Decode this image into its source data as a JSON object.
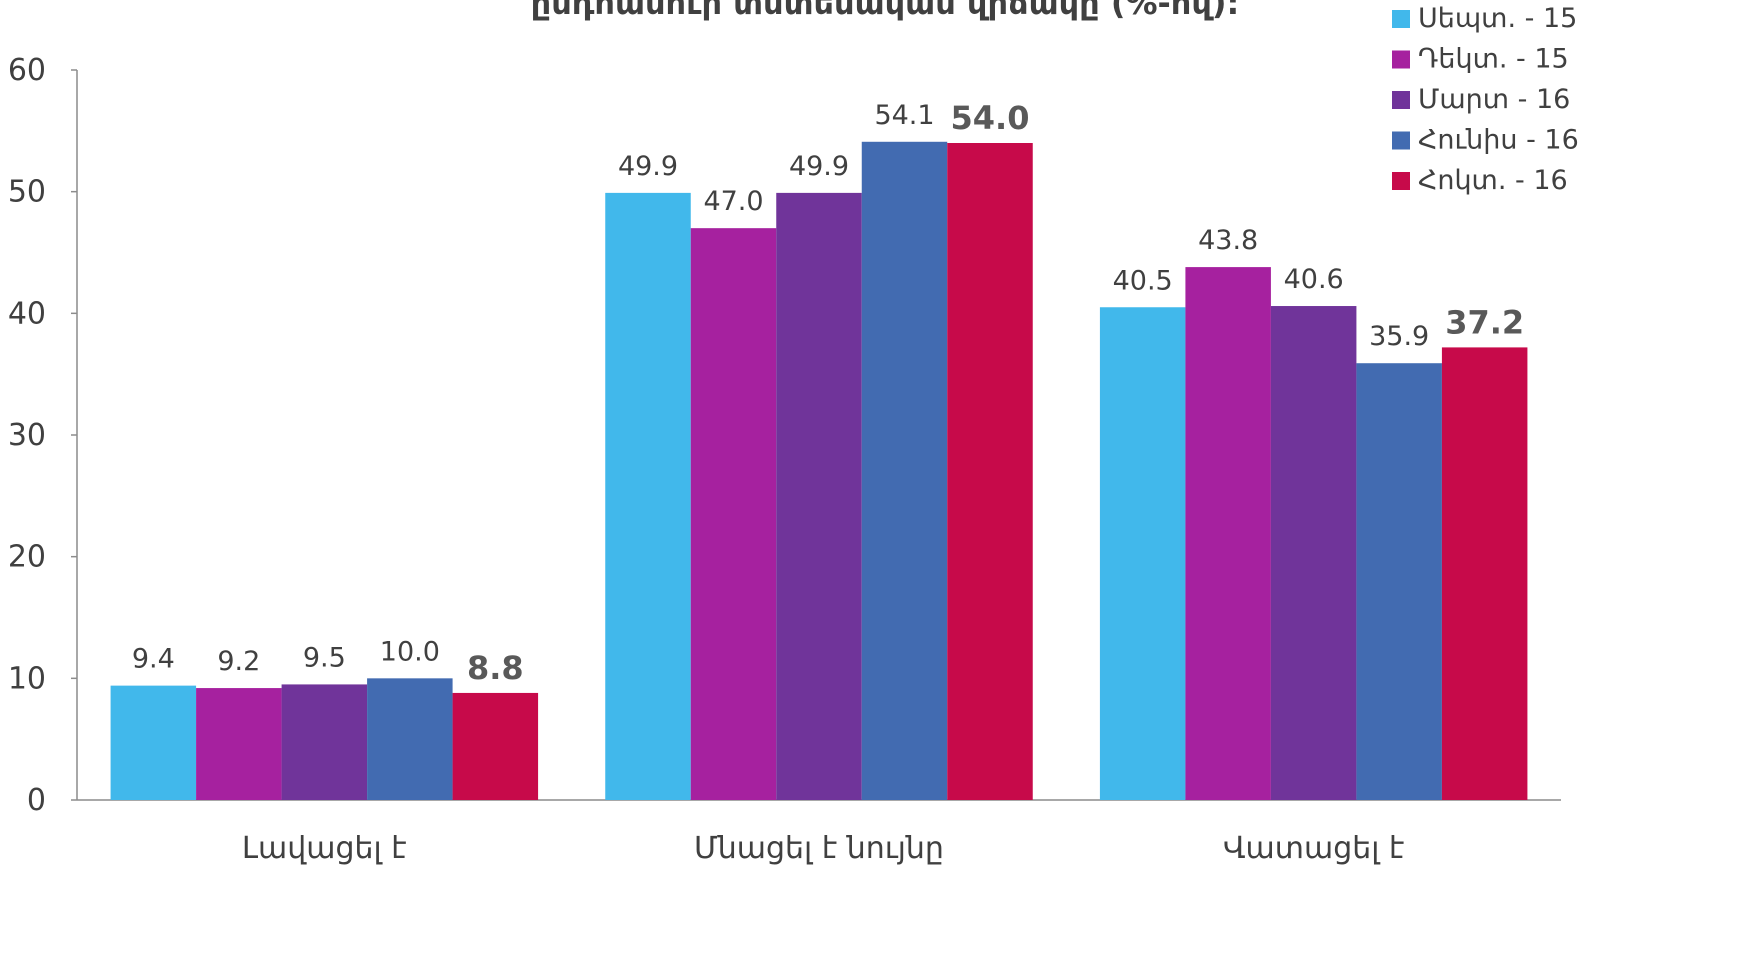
{
  "chart_data": {
    "type": "bar",
    "title": "ընդհանուր տնտեսական վիճակը (%-ով):",
    "categories": [
      "Լավացել է",
      "Մնացել է նույնը",
      "Վատացել է"
    ],
    "series": [
      {
        "name": "Սեպտ. - 15",
        "color": "#41B8EB",
        "values": [
          9.4,
          49.9,
          40.5
        ]
      },
      {
        "name": "Դեկտ. - 15",
        "color": "#A6219F",
        "values": [
          9.2,
          47.0,
          43.8
        ]
      },
      {
        "name": "Մարտ - 16",
        "color": "#70349A",
        "values": [
          9.5,
          49.9,
          40.6
        ]
      },
      {
        "name": "Հունիս - 16",
        "color": "#426BB1",
        "values": [
          10.0,
          54.1,
          35.9
        ]
      },
      {
        "name": "Հոկտ. - 16",
        "color": "#C70A4A",
        "values": [
          8.8,
          54.0,
          37.2
        ]
      }
    ],
    "emphasized_series": 4,
    "ylim": [
      0,
      60
    ],
    "yticks": [
      0,
      10,
      20,
      30,
      40,
      50,
      60
    ],
    "grid": false,
    "legend_position": "top-right",
    "xlabel": "",
    "ylabel": ""
  }
}
